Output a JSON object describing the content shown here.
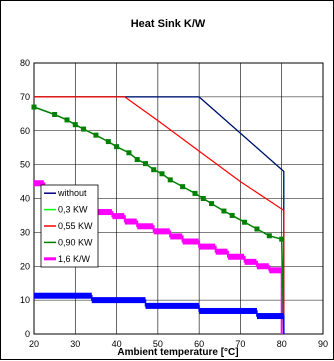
{
  "chart_data": {
    "type": "line",
    "title": "Heat Sink K/W",
    "xlabel": "Ambient temperature  [°C]",
    "ylabel": "",
    "xlim": [
      20,
      90
    ],
    "ylim": [
      0,
      80
    ],
    "xticks": [
      20,
      30,
      40,
      50,
      60,
      70,
      80,
      90
    ],
    "yticks": [
      0,
      10,
      20,
      30,
      40,
      50,
      60,
      70,
      80
    ],
    "grid": true,
    "legend_position": "lower-left",
    "series": [
      {
        "name": "without",
        "color": "#000080",
        "style": "line",
        "points": [
          [
            20,
            70
          ],
          [
            60,
            70
          ],
          [
            80.5,
            48
          ],
          [
            80.5,
            0
          ]
        ]
      },
      {
        "name": "0,3 KW",
        "color": "#00ff00",
        "style": "line",
        "points": [
          [
            20,
            70
          ],
          [
            60,
            70
          ],
          [
            80.5,
            48
          ],
          [
            80.5,
            0
          ]
        ]
      },
      {
        "name": "0,55 KW",
        "color": "#ff0000",
        "style": "line",
        "points": [
          [
            20,
            70
          ],
          [
            42,
            70
          ],
          [
            50,
            63
          ],
          [
            60,
            54
          ],
          [
            70,
            45
          ],
          [
            80.5,
            36.5
          ],
          [
            80.5,
            0
          ]
        ]
      },
      {
        "name": "0,90 KW",
        "color": "#008000",
        "style": "line-markers",
        "points": [
          [
            20,
            67
          ],
          [
            25,
            64.8
          ],
          [
            28,
            63.2
          ],
          [
            30,
            61.8
          ],
          [
            32,
            60.5
          ],
          [
            35,
            58.7
          ],
          [
            38,
            56.8
          ],
          [
            40,
            55.3
          ],
          [
            43,
            53.5
          ],
          [
            45,
            51.5
          ],
          [
            47,
            50.3
          ],
          [
            49,
            48.5
          ],
          [
            51,
            47.3
          ],
          [
            53,
            45.5
          ],
          [
            56,
            43.5
          ],
          [
            59,
            41.5
          ],
          [
            61,
            40
          ],
          [
            63,
            38.5
          ],
          [
            66,
            36.3
          ],
          [
            68,
            35
          ],
          [
            71,
            33
          ],
          [
            74,
            31
          ],
          [
            77,
            29
          ],
          [
            80,
            28
          ],
          [
            80.5,
            0
          ]
        ]
      },
      {
        "name": "1,6 K/W",
        "color": "#ff00ff",
        "style": "dashed",
        "points": [
          [
            20,
            44.5
          ],
          [
            22.5,
            44.5
          ],
          [
            22.5,
            42.5
          ],
          [
            25,
            42.5
          ],
          [
            25,
            40.5
          ],
          [
            28,
            40.5
          ],
          [
            28,
            39
          ],
          [
            32,
            39
          ],
          [
            32,
            37.5
          ],
          [
            35,
            37.5
          ],
          [
            35,
            36
          ],
          [
            39,
            36
          ],
          [
            39,
            34.8
          ],
          [
            42,
            34.8
          ],
          [
            42,
            33.2
          ],
          [
            45,
            33.2
          ],
          [
            45,
            31.8
          ],
          [
            49,
            31.8
          ],
          [
            49,
            30.3
          ],
          [
            53,
            30.3
          ],
          [
            53,
            28.8
          ],
          [
            56,
            28.8
          ],
          [
            56,
            27.3
          ],
          [
            60,
            27.3
          ],
          [
            60,
            25.8
          ],
          [
            64,
            25.8
          ],
          [
            64,
            24.3
          ],
          [
            67,
            24.3
          ],
          [
            67,
            22.8
          ],
          [
            71,
            22.8
          ],
          [
            71,
            21.3
          ],
          [
            74,
            21.3
          ],
          [
            74,
            20
          ],
          [
            77,
            20
          ],
          [
            77,
            18.8
          ],
          [
            80,
            18.8
          ],
          [
            80,
            0
          ]
        ]
      },
      {
        "name": "",
        "color": "#0000ff",
        "style": "thick",
        "points": [
          [
            20,
            11.3
          ],
          [
            34,
            11.3
          ],
          [
            34,
            10
          ],
          [
            47,
            10
          ],
          [
            47,
            8.3
          ],
          [
            60,
            8.3
          ],
          [
            60,
            6.8
          ],
          [
            74,
            6.8
          ],
          [
            74,
            5.3
          ],
          [
            80.5,
            5.3
          ],
          [
            80.5,
            0
          ]
        ]
      }
    ]
  }
}
